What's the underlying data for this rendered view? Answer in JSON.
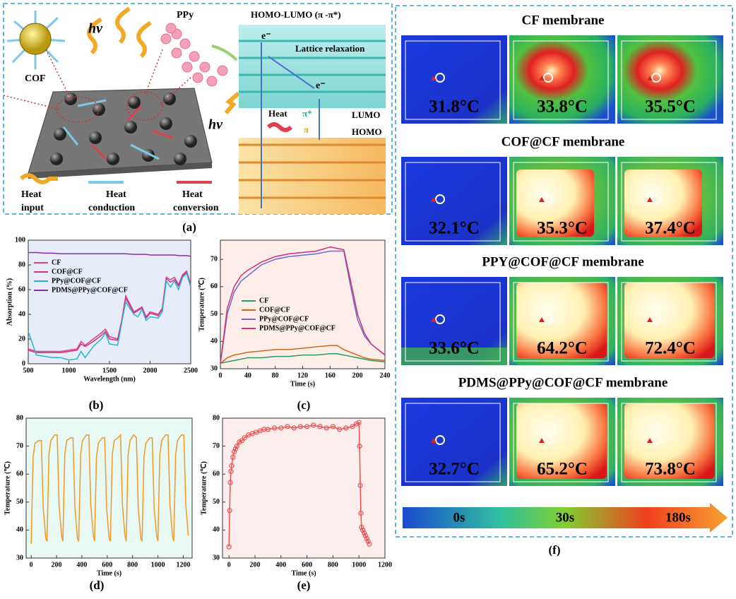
{
  "panel_a": {
    "label": "(a)",
    "hv_1": "hν",
    "hv_2": "hν",
    "ppy": "PPy",
    "cof": "COF",
    "homo_lumo_title": "HOMO-LUMO (π -π*)",
    "electron_1": "e⁻",
    "electron_2": "e⁻",
    "lattice": "Lattice relaxation",
    "heat": "Heat",
    "pi_star": "π*",
    "pi": "π",
    "lumo": "LUMO",
    "homo": "HOMO",
    "heat_input_1": "Heat",
    "heat_input_2": "input",
    "heat_conduction_1": "Heat",
    "heat_conduction_2": "conduction",
    "heat_conversion_1": "Heat",
    "heat_conversion_2": "conversion"
  },
  "chart_data": [
    {
      "type": "line",
      "panel": "(b)",
      "xlabel": "Wavelength (nm)",
      "ylabel": "Absorption (%)",
      "legend": "upper left",
      "x": [
        500,
        600,
        700,
        800,
        900,
        1000,
        1100,
        1150,
        1200,
        1300,
        1400,
        1450,
        1500,
        1600,
        1650,
        1700,
        1800,
        1850,
        1900,
        1950,
        2000,
        2100,
        2150,
        2200,
        2250,
        2300,
        2350,
        2400,
        2450,
        2500
      ],
      "xlim": [
        500,
        2500
      ],
      "xticks": [
        500,
        1000,
        1500,
        2000,
        2500
      ],
      "ylim": [
        0,
        100
      ],
      "yticks": [
        0,
        20,
        40,
        60,
        80,
        100
      ],
      "series": [
        {
          "name": "CF",
          "color": "#e0407a",
          "values": [
            12,
            10,
            10,
            10,
            10,
            11,
            12,
            18,
            15,
            20,
            25,
            28,
            22,
            20,
            35,
            55,
            42,
            44,
            46,
            38,
            42,
            40,
            45,
            70,
            68,
            70,
            64,
            72,
            75,
            64
          ]
        },
        {
          "name": "COF@CF",
          "color": "#d0308a",
          "values": [
            11,
            9,
            9,
            9,
            9,
            10,
            11,
            16,
            14,
            18,
            23,
            26,
            20,
            19,
            34,
            53,
            41,
            43,
            45,
            37,
            41,
            39,
            44,
            69,
            66,
            68,
            63,
            71,
            74,
            63
          ]
        },
        {
          "name": "PPy@COF@CF",
          "color": "#28b4d0",
          "values": [
            26,
            7,
            6,
            5,
            5,
            3,
            4,
            10,
            5,
            14,
            20,
            25,
            16,
            15,
            33,
            50,
            40,
            38,
            44,
            35,
            38,
            37,
            42,
            67,
            62,
            67,
            60,
            70,
            73,
            62
          ]
        },
        {
          "name": "PDMS@PPy@COF@CF",
          "color": "#8a2ab0",
          "values": [
            90,
            90,
            89.5,
            89.5,
            89,
            89,
            89,
            89,
            89,
            89,
            89,
            89,
            89,
            89,
            89,
            89,
            88.5,
            88.5,
            88.5,
            88.5,
            88,
            88,
            88,
            88,
            88,
            88,
            87.5,
            87.5,
            87.5,
            87
          ]
        }
      ]
    },
    {
      "type": "line",
      "panel": "(c)",
      "xlabel": "Time (s)",
      "ylabel": "Temperature (℃)",
      "legend": "center left",
      "x": [
        0,
        10,
        20,
        30,
        40,
        60,
        80,
        100,
        120,
        140,
        160,
        170,
        180,
        190,
        200,
        210,
        220,
        240
      ],
      "xlim": [
        0,
        240
      ],
      "xticks": [
        0,
        40,
        80,
        120,
        160,
        200,
        240
      ],
      "ylim": [
        30,
        77
      ],
      "yticks": [
        30,
        40,
        50,
        60,
        70
      ],
      "series": [
        {
          "name": "CF",
          "color": "#2a9a5a",
          "values": [
            32,
            32.5,
            33,
            33.5,
            34,
            34,
            34.5,
            34.5,
            35,
            35,
            35.5,
            35.5,
            35,
            34.5,
            34,
            33.5,
            33,
            32.5
          ]
        },
        {
          "name": "COF@CF",
          "color": "#d0681a",
          "values": [
            32,
            34,
            35,
            35.5,
            36,
            36.5,
            37,
            37,
            37.5,
            38,
            38.5,
            38.5,
            37,
            36,
            35,
            34,
            33.5,
            33
          ]
        },
        {
          "name": "PPy@COF@CF",
          "color": "#6a6ad0",
          "values": [
            32,
            50,
            58,
            62,
            64,
            68,
            70,
            71,
            71.5,
            72,
            73,
            73,
            73,
            60,
            48,
            42,
            39,
            35
          ]
        },
        {
          "name": "PDMS@PPy@COF@CF",
          "color": "#d0307a",
          "values": [
            32,
            52,
            60,
            64,
            66,
            69,
            71,
            72,
            72.5,
            73,
            74.5,
            74,
            73.5,
            62,
            50,
            43,
            39,
            35
          ]
        }
      ]
    },
    {
      "type": "line",
      "panel": "(d)",
      "xlabel": "Time (s)",
      "ylabel": "Temperature (℃)",
      "x": [
        0,
        15,
        30,
        60,
        80,
        95,
        115,
        125,
        140,
        155,
        185,
        205,
        220,
        240,
        250,
        265,
        280,
        310,
        330,
        345,
        365,
        375,
        390,
        405,
        435,
        455,
        470,
        490,
        500,
        515,
        530,
        560,
        580,
        595,
        615,
        625,
        640,
        655,
        685,
        705,
        720,
        740,
        750,
        765,
        780,
        810,
        830,
        845,
        865,
        875,
        890,
        905,
        935,
        955,
        970,
        990,
        1000,
        1015,
        1030,
        1060,
        1080,
        1095,
        1115,
        1125,
        1140,
        1155,
        1185,
        1205,
        1220,
        1240
      ],
      "xlim": [
        -40,
        1270
      ],
      "xticks": [
        0,
        200,
        400,
        600,
        800,
        1000,
        1200
      ],
      "ylim": [
        30,
        80
      ],
      "yticks": [
        30,
        40,
        50,
        60,
        70,
        80
      ],
      "series": [
        {
          "name": null,
          "color": "#f0982a",
          "values": [
            35,
            66,
            71,
            72,
            72,
            48,
            37,
            36,
            67,
            72,
            74,
            74,
            49,
            38,
            36,
            67,
            72,
            73,
            73,
            48,
            37,
            36,
            67,
            72,
            74,
            74,
            49,
            38,
            36,
            66,
            71,
            73,
            73,
            48,
            37,
            36,
            67,
            72,
            73,
            74,
            49,
            38,
            36,
            67,
            72,
            74,
            73,
            48,
            37,
            36,
            66,
            71,
            73,
            73,
            48,
            38,
            36,
            67,
            72,
            74,
            74,
            49,
            38,
            36,
            67,
            72,
            74,
            74,
            49,
            38
          ]
        }
      ]
    },
    {
      "type": "line",
      "panel": "(e)",
      "xlabel": "Time (s)",
      "ylabel": "Temperature (℃)",
      "markers": true,
      "x": [
        0,
        5,
        10,
        15,
        20,
        30,
        40,
        50,
        60,
        80,
        100,
        120,
        150,
        180,
        210,
        240,
        270,
        300,
        350,
        400,
        450,
        500,
        550,
        600,
        650,
        700,
        750,
        800,
        850,
        900,
        950,
        980,
        1000,
        1005,
        1010,
        1015,
        1020,
        1030,
        1040,
        1050,
        1060,
        1070,
        1080
      ],
      "xlim": [
        -50,
        1200
      ],
      "xticks": [
        0,
        200,
        400,
        600,
        800,
        1000,
        1200
      ],
      "ylim": [
        30,
        80
      ],
      "yticks": [
        30,
        40,
        50,
        60,
        70,
        80
      ],
      "series": [
        {
          "name": null,
          "color": "#f05050",
          "values": [
            34,
            47,
            57,
            61,
            63,
            66,
            68,
            69,
            70,
            71.5,
            72,
            73,
            74,
            74.5,
            75,
            75.5,
            76,
            76,
            76.5,
            76.5,
            77,
            76.5,
            77,
            77,
            77.5,
            77,
            76.5,
            77,
            76,
            76.5,
            77,
            78,
            78.5,
            70,
            56,
            46,
            41,
            40,
            39,
            38,
            37,
            36,
            35
          ]
        }
      ]
    }
  ],
  "panel_f": {
    "label": "(f)",
    "rows": [
      {
        "title": "CF membrane",
        "temps": [
          "31.8°C",
          "33.8°C",
          "35.5°C"
        ]
      },
      {
        "title": "COF@CF membrane",
        "temps": [
          "32.1°C",
          "35.3°C",
          "37.4°C"
        ]
      },
      {
        "title": "PPY@COF@CF membrane",
        "temps": [
          "33.6°C",
          "64.2°C",
          "72.4°C"
        ]
      },
      {
        "title": "PDMS@PPy@COF@CF membrane",
        "temps": [
          "32.7°C",
          "65.2°C",
          "73.8°C"
        ]
      }
    ],
    "scale": [
      "0s",
      "30s",
      "180s"
    ]
  }
}
